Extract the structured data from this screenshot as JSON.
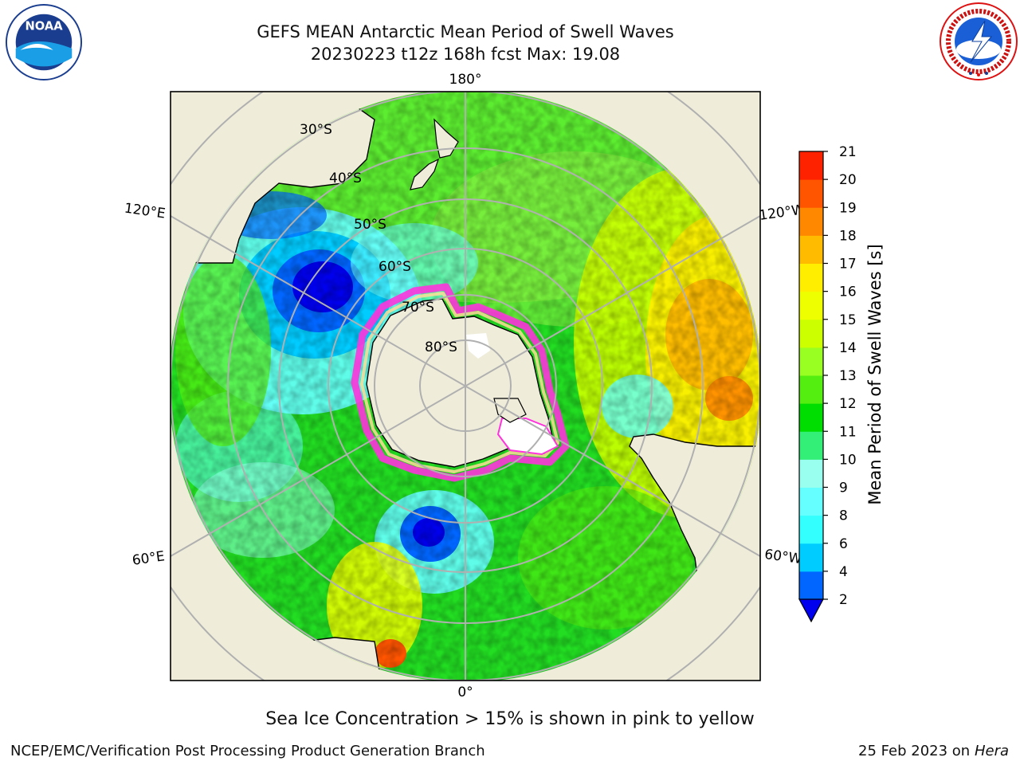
{
  "header": {
    "title_line1": "GEFS MEAN Antarctic Mean Period of Swell Waves",
    "title_line2": "20230223 t12z 168h fcst   Max: 19.08"
  },
  "logos": {
    "left": {
      "icon": "noaa-logo",
      "text": "NOAA"
    },
    "right": {
      "icon": "nws-logo"
    }
  },
  "map": {
    "projection": "south-polar-stereographic",
    "longitude_labels": {
      "top": "180°",
      "bottom": "0°",
      "left_upper": "120°E",
      "left_lower": "60°E",
      "right_upper": "120°W",
      "right_lower": "60°W"
    },
    "latitude_labels": [
      "30°S",
      "40°S",
      "50°S",
      "60°S",
      "70°S",
      "80°S"
    ],
    "colors": {
      "land": "#efedda",
      "ocean_base": "#22dd22",
      "grid": "#b0b0b0"
    }
  },
  "colorbar": {
    "label": "Mean Period of Swell Waves [s]",
    "ticks": [
      "2",
      "4",
      "6",
      "8",
      "9",
      "10",
      "11",
      "12",
      "13",
      "14",
      "15",
      "16",
      "17",
      "18",
      "19",
      "20",
      "21"
    ],
    "colors": [
      "#0066ff",
      "#00ccff",
      "#33ffff",
      "#66ffff",
      "#99ffee",
      "#33ee77",
      "#00dd00",
      "#55ee11",
      "#99ff22",
      "#ccff00",
      "#eeff00",
      "#ffee00",
      "#ffbb00",
      "#ff8800",
      "#ff5500",
      "#ff2200"
    ],
    "extend_color": "#0000ee"
  },
  "note": "Sea Ice Concentration > 15% is shown in pink to yellow",
  "footer": {
    "left": "NCEP/EMC/Verification Post Processing Product Generation Branch",
    "date": "25 Feb 2023 on",
    "host": "Hera"
  }
}
